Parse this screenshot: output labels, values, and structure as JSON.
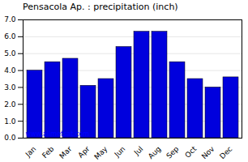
{
  "chart_data": {
    "type": "bar",
    "title": "Pensacola Ap. : precipitation (inch)",
    "categories": [
      "Jan",
      "Feb",
      "Mar",
      "Apr",
      "May",
      "Jun",
      "Jul",
      "Aug",
      "Sep",
      "Oct",
      "Nov",
      "Dec"
    ],
    "values": [
      4.0,
      4.5,
      4.7,
      3.1,
      3.5,
      5.4,
      6.3,
      6.3,
      4.5,
      3.5,
      3.0,
      3.6
    ],
    "color": "#0000DD",
    "ylim": [
      0,
      7
    ],
    "yticks": [
      0,
      1,
      2,
      3,
      4,
      5,
      6,
      7
    ],
    "grid": true,
    "annotations": [
      "www.allmetsat.com"
    ]
  }
}
